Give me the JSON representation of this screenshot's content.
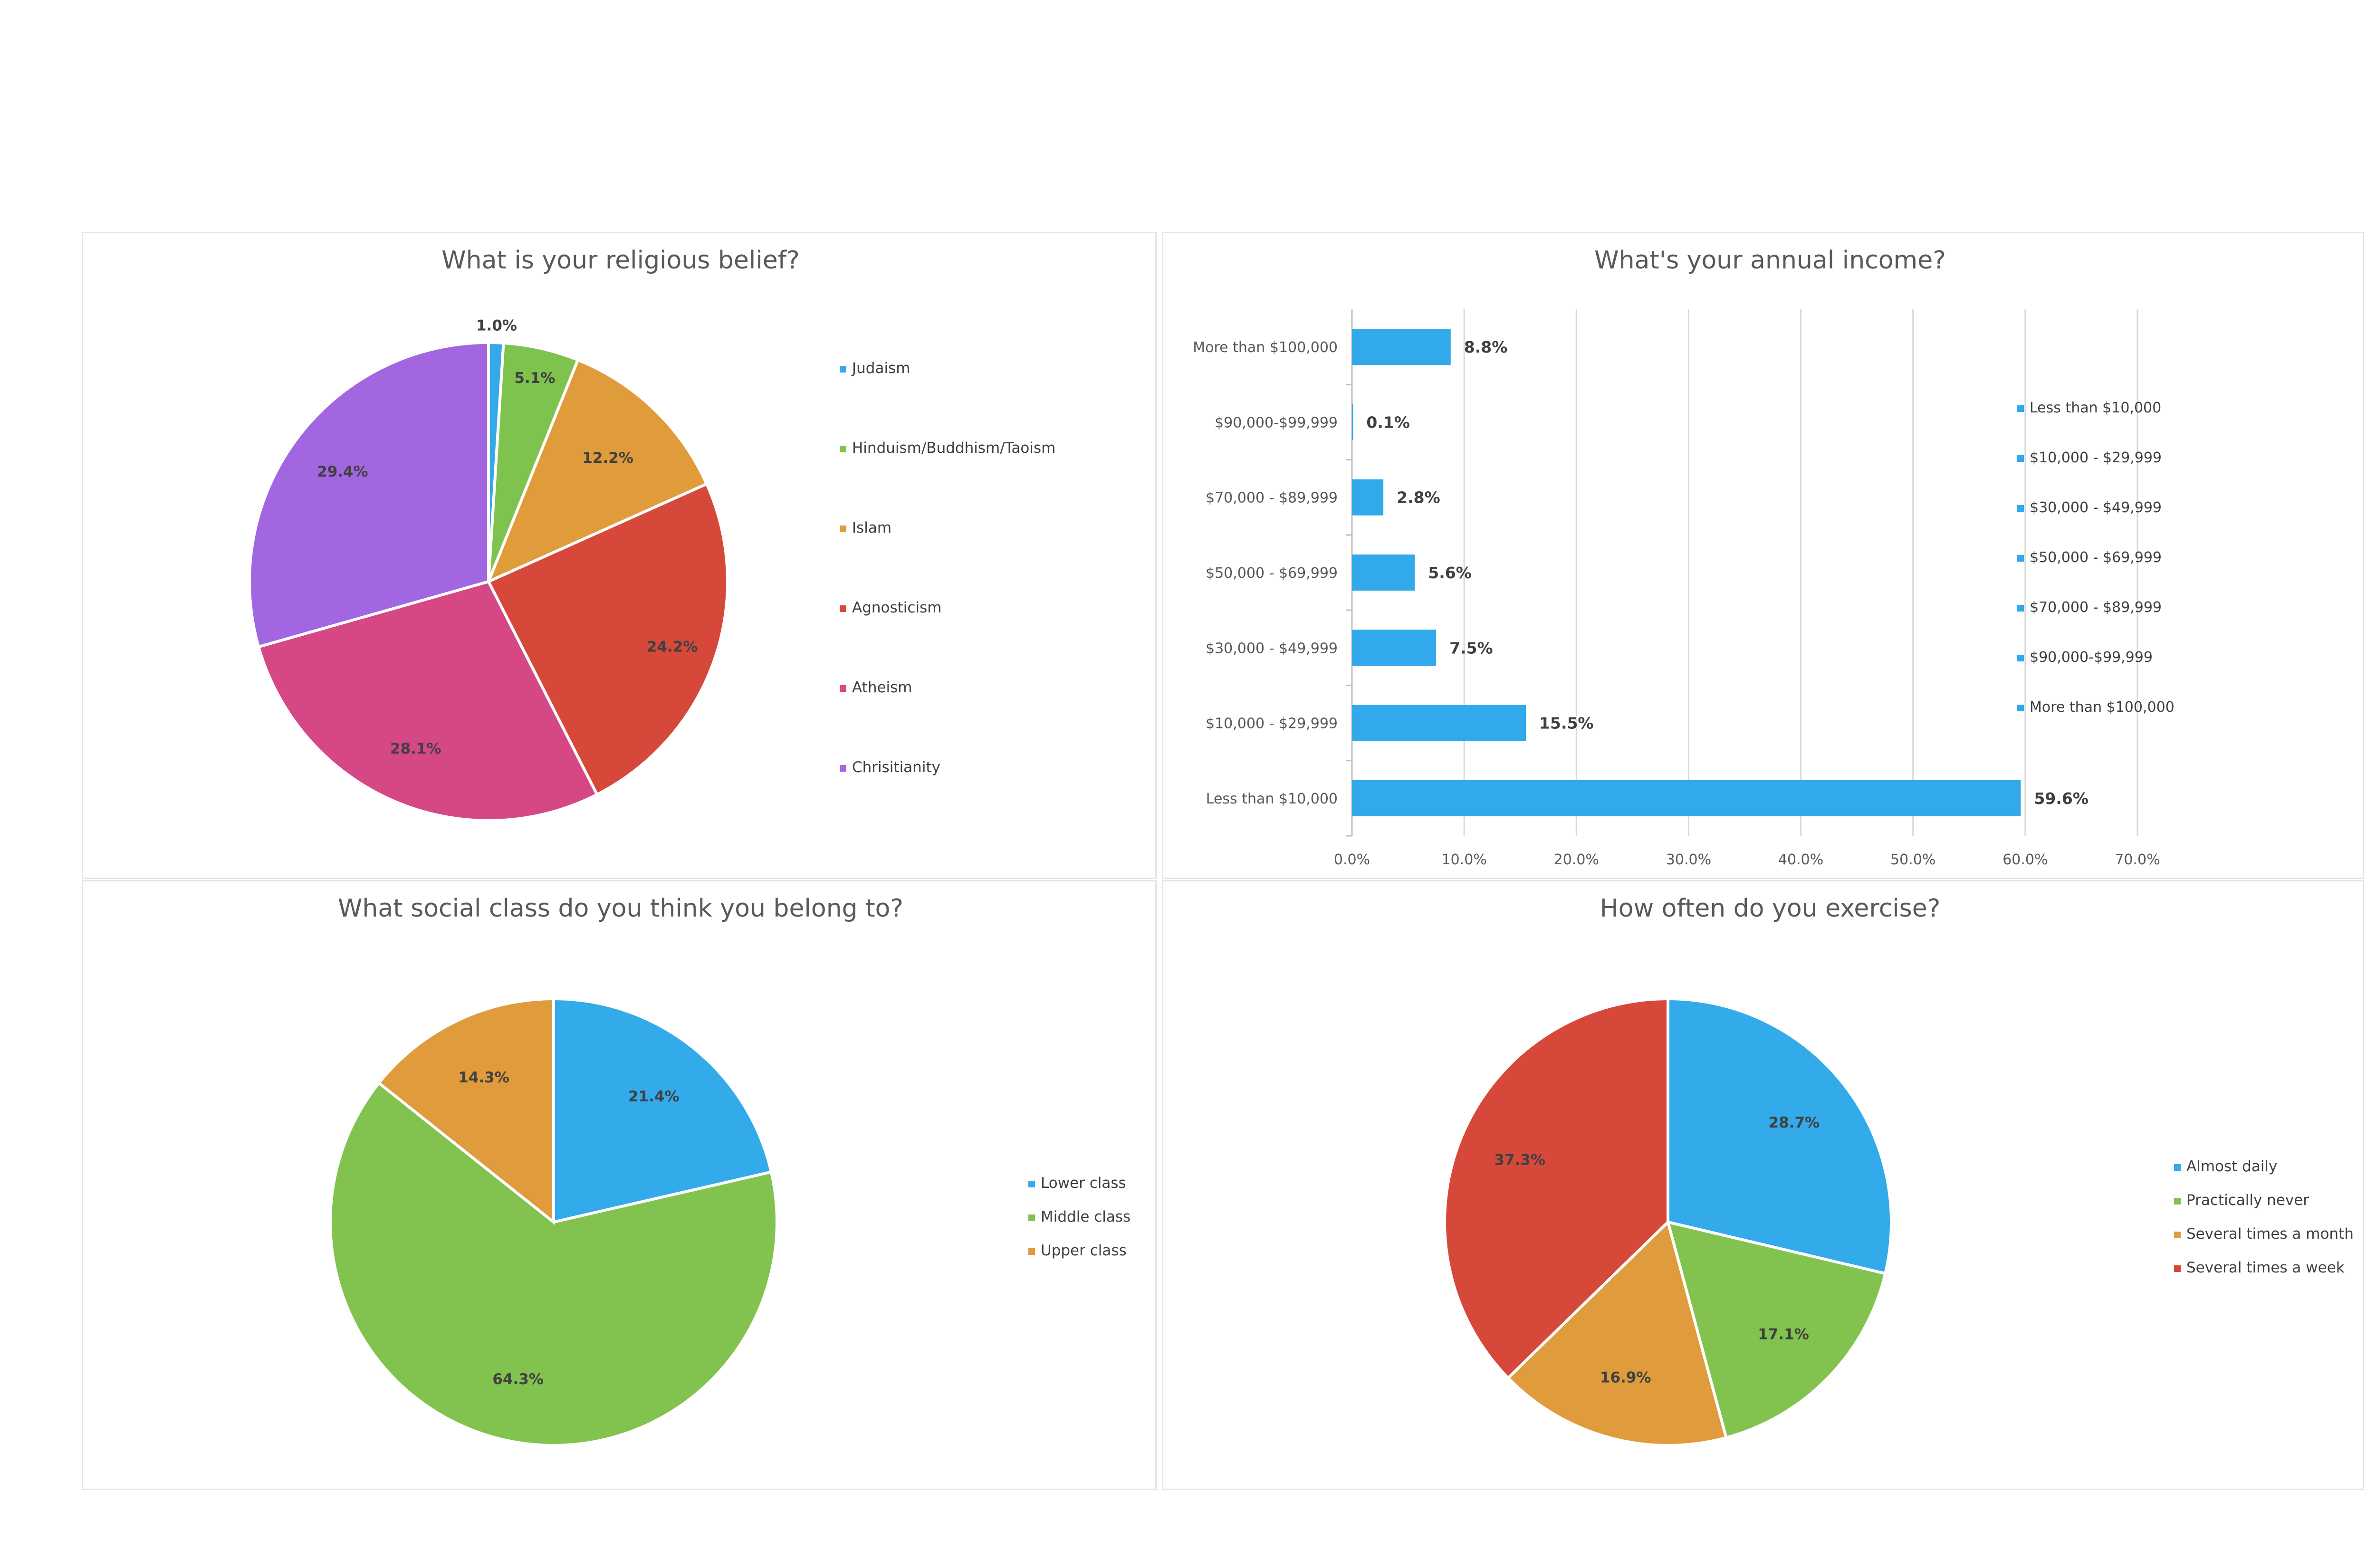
{
  "chart_data": [
    {
      "type": "pie",
      "title": "What is your religious belief?",
      "categories": [
        "Judaism",
        "Hinduism/Buddhism/Taoism",
        "Islam",
        "Agnosticism",
        "Atheism",
        "Chrisitianity"
      ],
      "values": [
        1.0,
        5.1,
        12.2,
        24.2,
        28.1,
        29.4
      ],
      "labels": [
        "1.0%",
        "5.1%",
        "12.2%",
        "24.2%",
        "28.1%",
        "29.4%"
      ],
      "colors": [
        "#35a8e8",
        "#7fc34f",
        "#e09b3b",
        "#d6493a",
        "#d64785",
        "#a166e0"
      ],
      "legend": "right"
    },
    {
      "type": "bar",
      "orientation": "horizontal",
      "title": "What's your annual income?",
      "categories": [
        "Less than $10,000",
        "$10,000 - $29,999",
        "$30,000 - $49,999",
        "$50,000 - $69,999",
        "$70,000 - $89,999",
        "$90,000-$99,999",
        "More than $100,000"
      ],
      "values": [
        59.6,
        15.5,
        7.5,
        5.6,
        2.8,
        0.1,
        8.8
      ],
      "labels": [
        "59.6%",
        "15.5%",
        "7.5%",
        "5.6%",
        "2.8%",
        "0.1%",
        "8.8%"
      ],
      "xticks": [
        "0.0%",
        "10.0%",
        "20.0%",
        "30.0%",
        "40.0%",
        "50.0%",
        "60.0%",
        "70.0%"
      ],
      "xlim": [
        0,
        70
      ],
      "grid": true,
      "color": "#31a9eb",
      "legend": "right"
    },
    {
      "type": "pie",
      "title": "What social class do you think you belong to?",
      "categories": [
        "Lower class",
        "Middle class",
        "Upper class"
      ],
      "values": [
        21.4,
        64.3,
        14.3
      ],
      "labels": [
        "21.4%",
        "64.3%",
        "14.3%"
      ],
      "colors": [
        "#33aaea",
        "#82c350",
        "#e09b3d"
      ],
      "legend": "right"
    },
    {
      "type": "pie",
      "title": "How often do you exercise?",
      "categories": [
        "Almost daily",
        "Practically never",
        "Several times a month",
        "Several times a week"
      ],
      "values": [
        28.7,
        17.1,
        16.9,
        37.3
      ],
      "labels": [
        "28.7%",
        "17.1%",
        "16.9%",
        "37.3%"
      ],
      "colors": [
        "#33aaea",
        "#82c350",
        "#e09b3d",
        "#d6493a"
      ],
      "legend": "right"
    }
  ]
}
